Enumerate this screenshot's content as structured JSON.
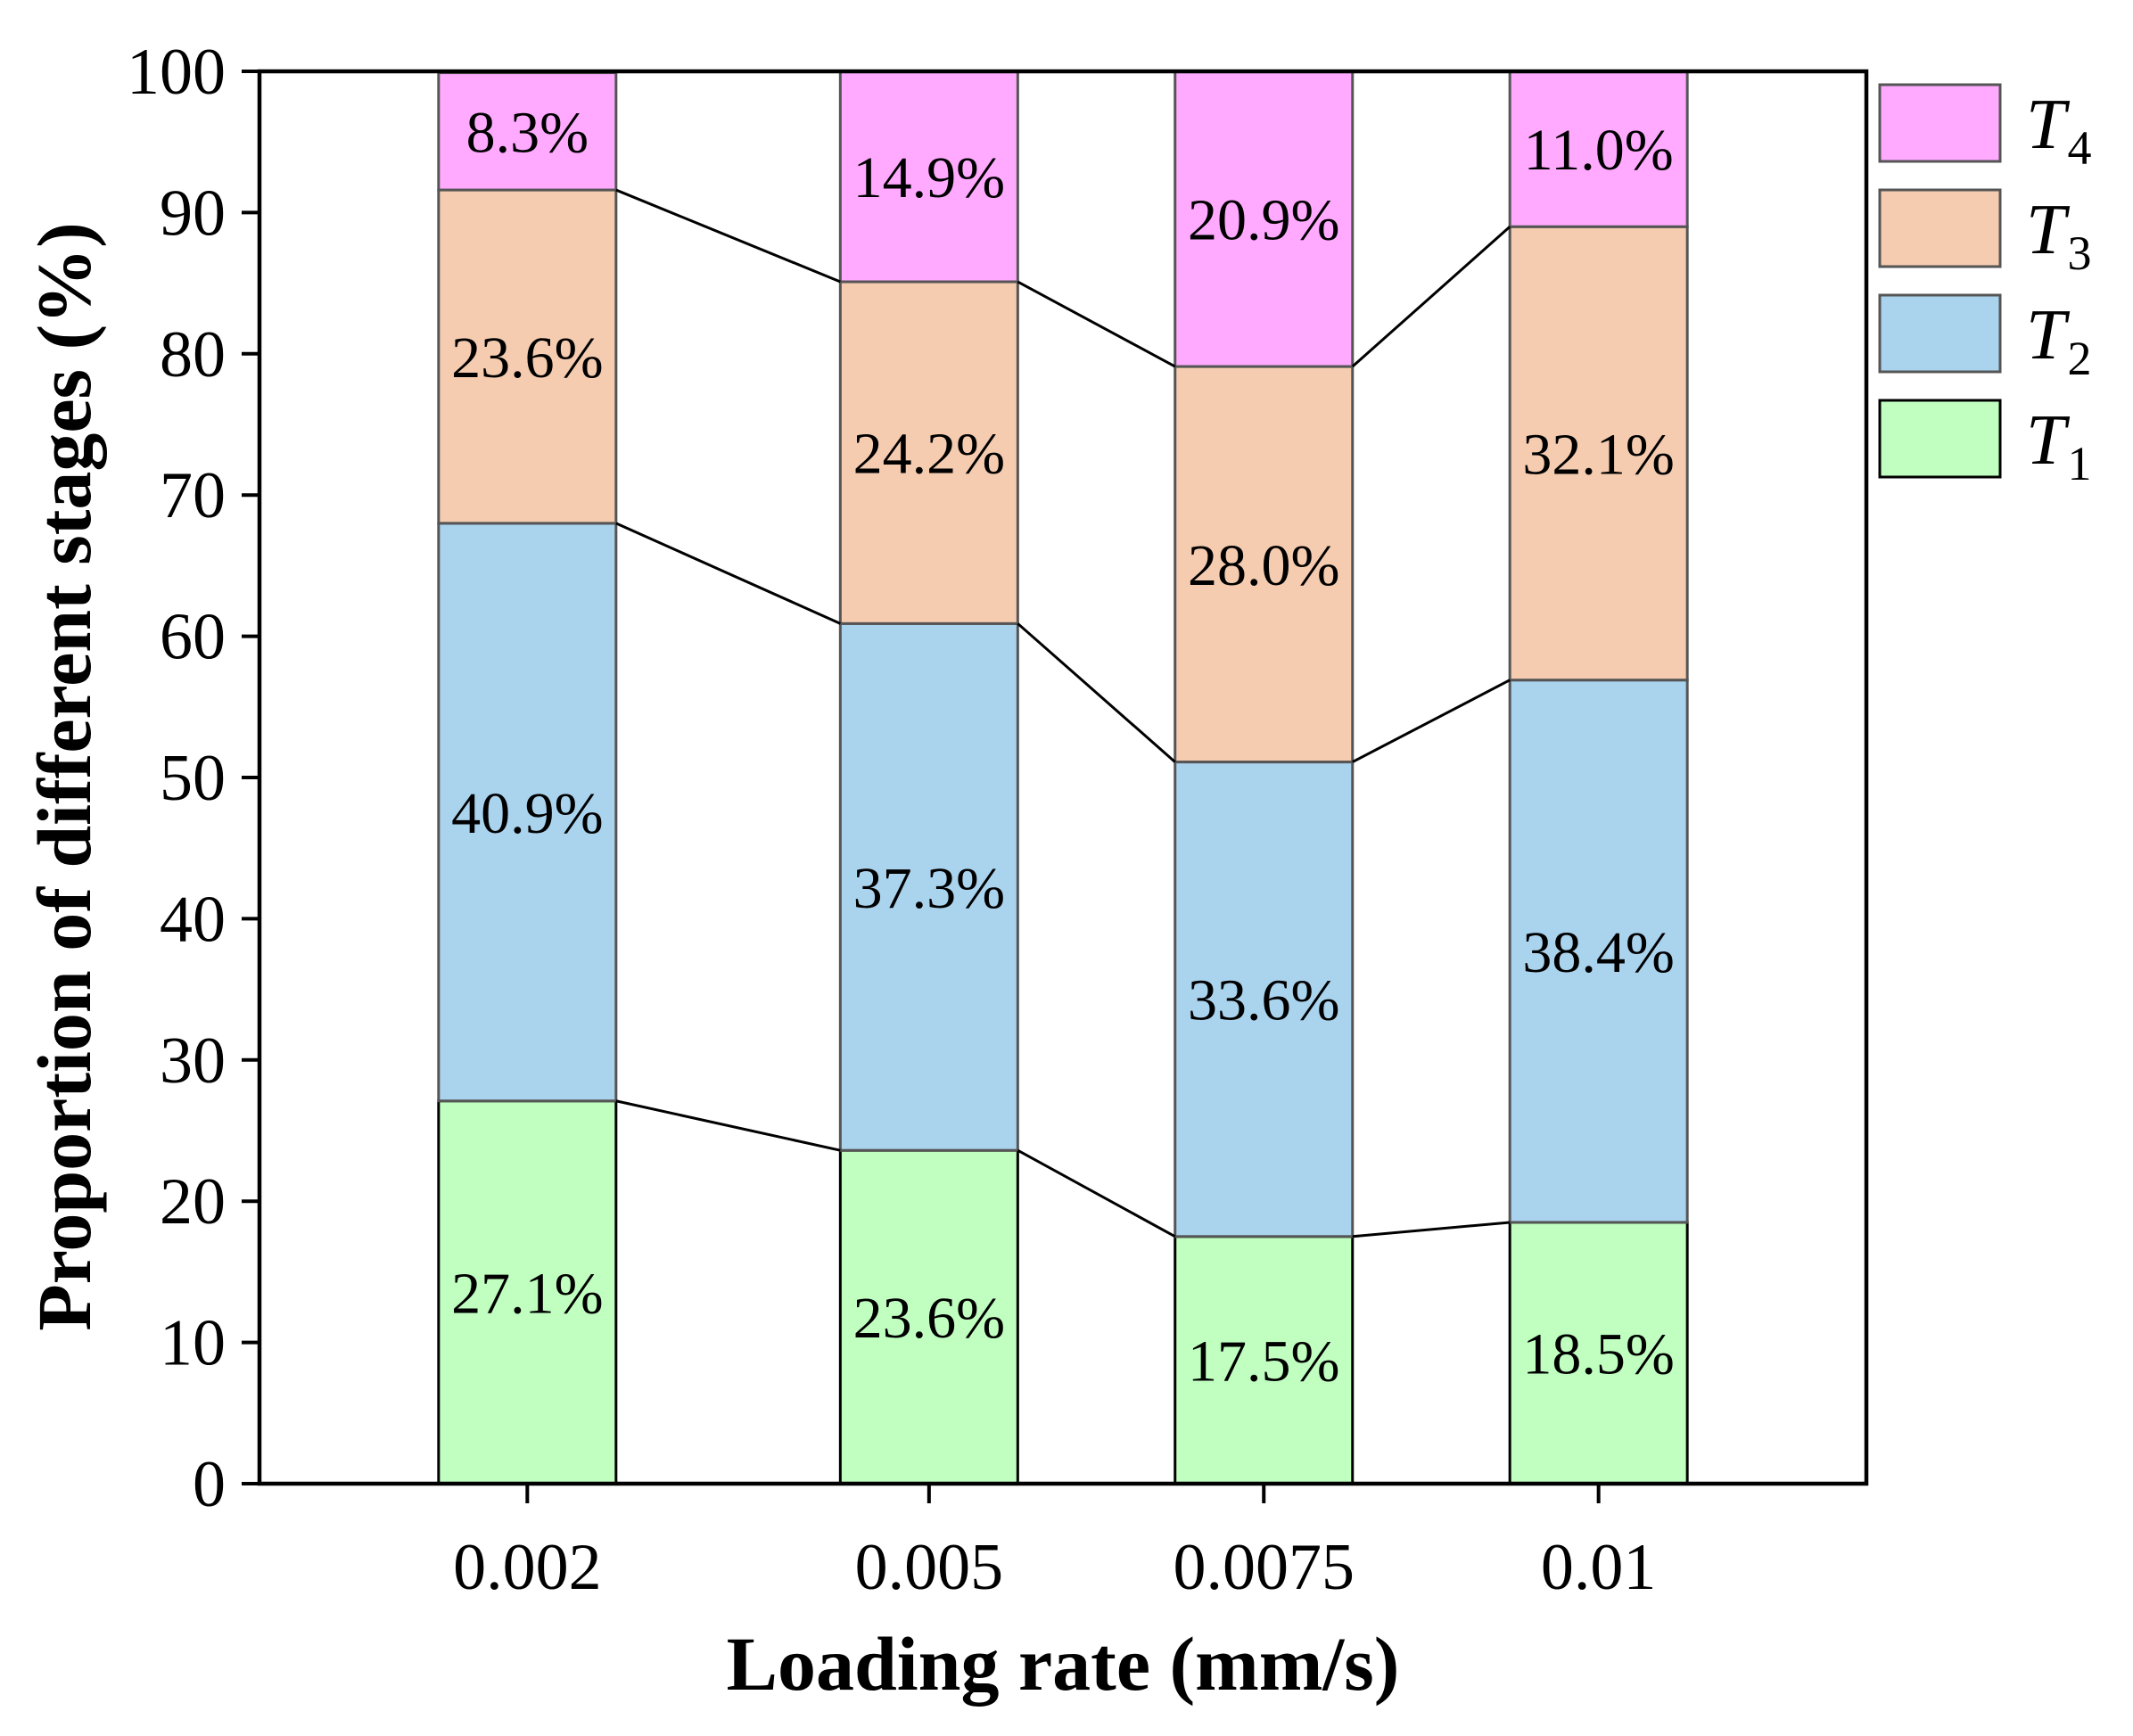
{
  "chart_data": {
    "type": "bar",
    "stacked": true,
    "title": "",
    "xlabel": "Loading rate (mm/s)",
    "ylabel": "Proportion of different stages (%)",
    "x": [
      0.002,
      0.005,
      0.0075,
      0.01
    ],
    "categories": [
      "0.002",
      "0.005",
      "0.0075",
      "0.01"
    ],
    "xlim": [
      0,
      0.012
    ],
    "ylim": [
      0,
      100
    ],
    "yticks": [
      0,
      10,
      20,
      30,
      40,
      50,
      60,
      70,
      80,
      90,
      100
    ],
    "grid": false,
    "connector_lines": true,
    "legend": {
      "position": "outside-top-right",
      "order": "reverse"
    },
    "series": [
      {
        "name": "T1",
        "color": "#C0FFC0",
        "edge": "#000000",
        "values": [
          27.1,
          23.6,
          17.5,
          18.5
        ],
        "labels": [
          "27.1%",
          "23.6%",
          "17.5%",
          "18.5%"
        ]
      },
      {
        "name": "T2",
        "color": "#AAD3EE",
        "edge": "#555555",
        "values": [
          40.9,
          37.3,
          33.6,
          38.4
        ],
        "labels": [
          "40.9%",
          "37.3%",
          "33.6%",
          "38.4%"
        ]
      },
      {
        "name": "T3",
        "color": "#F5CCB0",
        "edge": "#555555",
        "values": [
          23.6,
          24.2,
          28.0,
          32.1
        ],
        "labels": [
          "23.6%",
          "24.2%",
          "28.0%",
          "32.1%"
        ]
      },
      {
        "name": "T4",
        "color": "#FFAAFF",
        "edge": "#555555",
        "values": [
          8.3,
          14.9,
          20.9,
          11.0
        ],
        "labels": [
          "8.3%",
          "14.9%",
          "20.9%",
          "11.0%"
        ]
      }
    ]
  }
}
